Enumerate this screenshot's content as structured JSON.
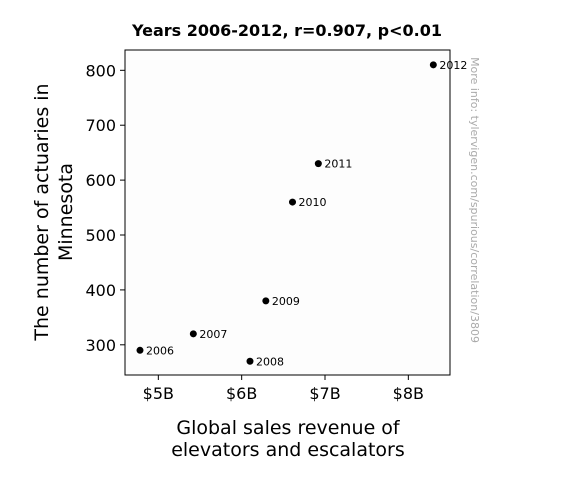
{
  "chart_data": {
    "type": "scatter",
    "title": "Years 2006-2012, r=0.907, p<0.01",
    "xlabel_lines": [
      "Global sales revenue of",
      "elevators and escalators"
    ],
    "ylabel_lines": [
      "The number of actuaries in",
      "Minnesota"
    ],
    "x_unit": "billion USD",
    "xlim": [
      4.6,
      8.5
    ],
    "ylim": [
      245,
      837
    ],
    "xticks": [
      {
        "value": 5,
        "label": "$5B"
      },
      {
        "value": 6,
        "label": "$6B"
      },
      {
        "value": 7,
        "label": "$7B"
      },
      {
        "value": 8,
        "label": "$8B"
      }
    ],
    "yticks": [
      {
        "value": 300,
        "label": "300"
      },
      {
        "value": 400,
        "label": "400"
      },
      {
        "value": 500,
        "label": "500"
      },
      {
        "value": 600,
        "label": "600"
      },
      {
        "value": 700,
        "label": "700"
      },
      {
        "value": 800,
        "label": "800"
      }
    ],
    "points": [
      {
        "x": 4.78,
        "y": 290,
        "label": "2006"
      },
      {
        "x": 5.42,
        "y": 320,
        "label": "2007"
      },
      {
        "x": 6.1,
        "y": 270,
        "label": "2008"
      },
      {
        "x": 6.29,
        "y": 380,
        "label": "2009"
      },
      {
        "x": 6.61,
        "y": 560,
        "label": "2010"
      },
      {
        "x": 6.92,
        "y": 630,
        "label": "2011"
      },
      {
        "x": 8.3,
        "y": 810,
        "label": "2012"
      }
    ],
    "marker_color": "#000000",
    "grid": false,
    "legend": "none"
  },
  "watermark": "More info: tylervigen.com/spurious/correlation/3809"
}
